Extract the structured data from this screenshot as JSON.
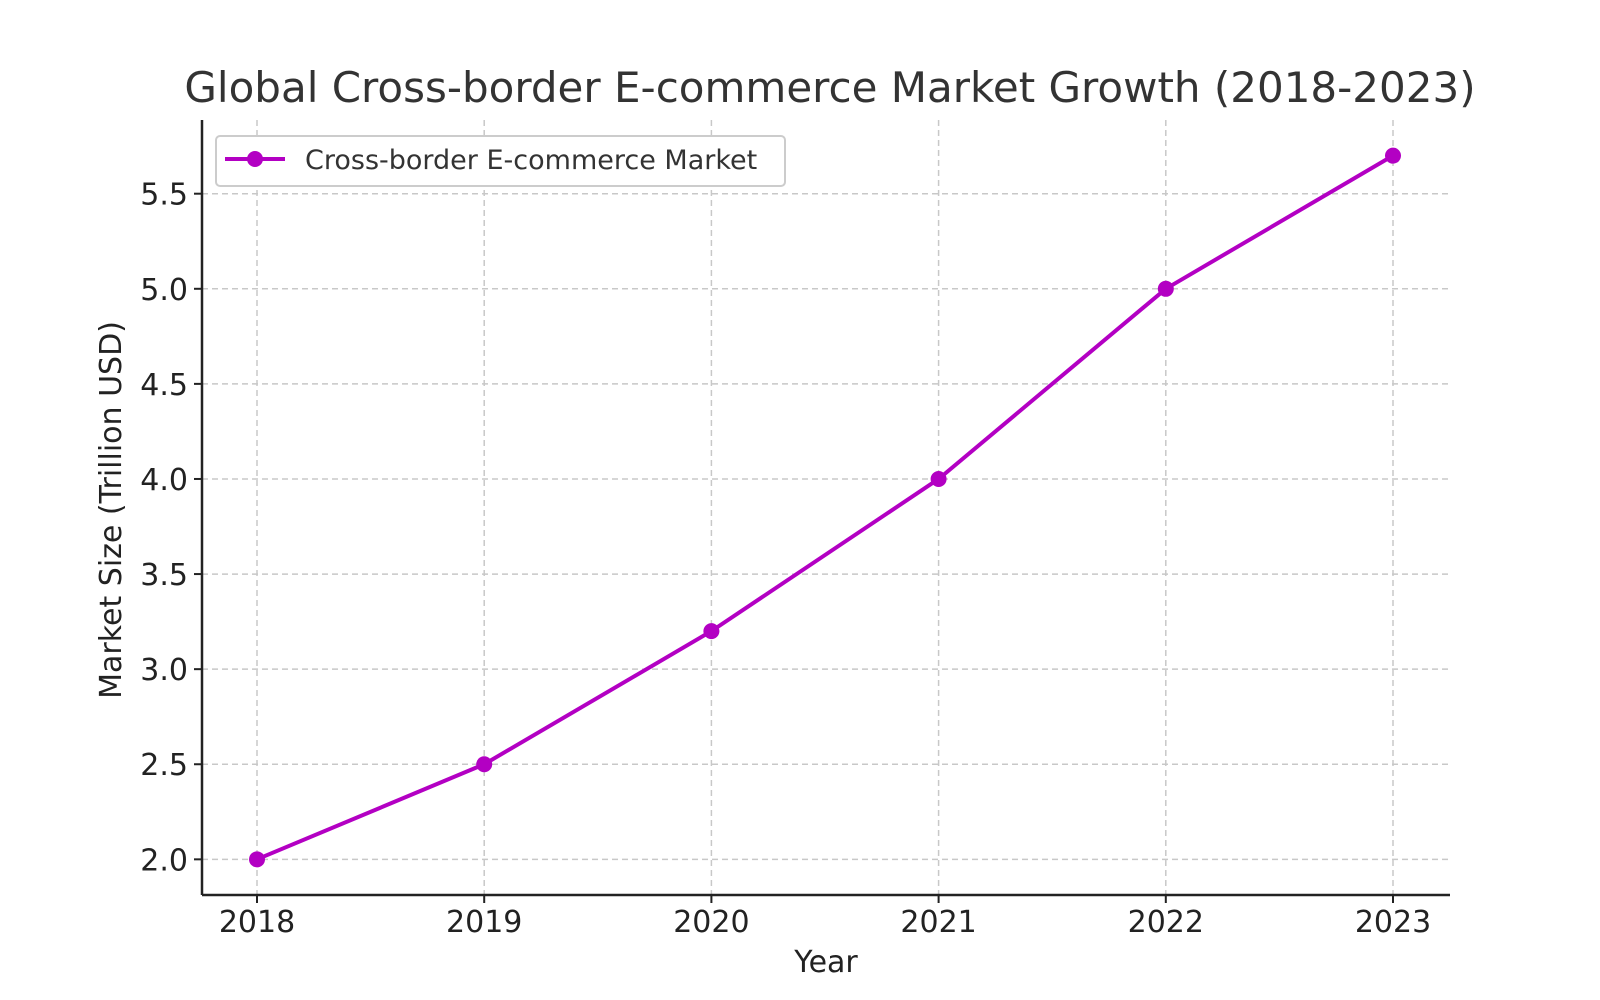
{
  "chart_data": {
    "type": "line",
    "title": "Global Cross-border E-commerce Market Growth (2018-2023)",
    "xlabel": "Year",
    "ylabel": "Market Size (Trillion USD)",
    "x": [
      "2018",
      "2019",
      "2020",
      "2021",
      "2022",
      "2023"
    ],
    "series": [
      {
        "name": "Cross-border E-commerce Market",
        "values": [
          2.0,
          2.5,
          3.2,
          4.0,
          5.0,
          5.7
        ],
        "color": "#b300c3"
      }
    ],
    "ylim": [
      1.8125,
      5.8875
    ],
    "yticks": [
      "2.0",
      "2.5",
      "3.0",
      "3.5",
      "4.0",
      "4.5",
      "5.0",
      "5.5"
    ],
    "grid": true,
    "legend_position": "top-left"
  }
}
